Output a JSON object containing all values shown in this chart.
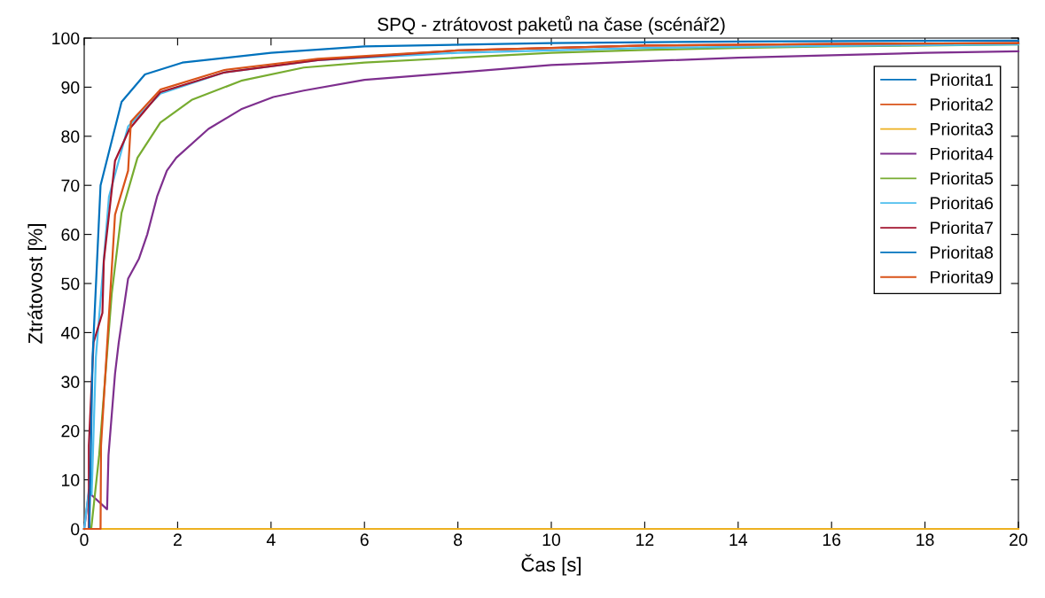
{
  "chart_data": {
    "type": "line",
    "title": "SPQ - ztrátovost paketů na čase (scénář2)",
    "xlabel": "Čas [s]",
    "ylabel": "Ztrátovost [%]",
    "xlim": [
      0,
      20
    ],
    "ylim": [
      0,
      100
    ],
    "xticks": [
      0,
      2,
      4,
      6,
      8,
      10,
      12,
      14,
      16,
      18,
      20
    ],
    "yticks": [
      0,
      10,
      20,
      30,
      40,
      50,
      60,
      70,
      80,
      90,
      100
    ],
    "grid": false,
    "legend": "top right",
    "line_style": "solid",
    "marker": "none",
    "series": [
      {
        "name": "Priorita1",
        "color": "#0072bd"
      },
      {
        "name": "Priorita2",
        "color": "#d95319"
      },
      {
        "name": "Priorita3",
        "color": "#edb120",
        "x": [
          0,
          20
        ],
        "values": [
          0,
          0
        ]
      },
      {
        "name": "Priorita4",
        "color": "#7e2f8e",
        "x": [
          0,
          0.1,
          0.49,
          0.52,
          0.66,
          0.74,
          0.94,
          1.17,
          1.35,
          1.56,
          1.77,
          1.97,
          2.66,
          3.36,
          4.05,
          4.7,
          6,
          8,
          10,
          12,
          14,
          16,
          18,
          20
        ],
        "values": [
          0,
          7.4,
          4,
          15,
          31.6,
          38,
          51,
          55,
          60,
          67.7,
          73,
          75.6,
          81.5,
          85.5,
          88,
          89.3,
          91.5,
          93,
          94.5,
          95.3,
          96,
          96.5,
          97,
          97.3
        ]
      },
      {
        "name": "Priorita5",
        "color": "#77ac30",
        "x": [
          0,
          0.15,
          0.32,
          0.59,
          0.8,
          1.14,
          1.63,
          2.3,
          3.36,
          4.7,
          6,
          8,
          10,
          12,
          14,
          16,
          18,
          20
        ],
        "values": [
          0,
          0,
          15,
          48,
          64.4,
          75.6,
          82.8,
          87.4,
          91.3,
          94,
          95,
          96,
          97,
          97.6,
          98,
          98.3,
          98.5,
          98.7
        ]
      },
      {
        "name": "Priorita6",
        "color": "#4dbeee",
        "x": [
          0,
          0.1,
          0.16,
          0.25,
          0.53,
          0.94,
          1.63,
          3,
          5,
          8,
          12,
          16,
          20
        ],
        "values": [
          0,
          8,
          7,
          35,
          67.7,
          82,
          88.7,
          93,
          95.5,
          97,
          98,
          98.4,
          98.7
        ]
      },
      {
        "name": "Priorita7",
        "color": "#a2142f",
        "x": [
          0,
          0.1,
          0.1,
          0.2,
          0.39,
          0.42,
          0.66,
          0.97,
          1.63,
          3,
          5,
          8,
          12,
          16,
          20
        ],
        "values": [
          0,
          0,
          17,
          38,
          44,
          54.6,
          75,
          81.5,
          89,
          93,
          95.5,
          97.5,
          98.5,
          98.8,
          99
        ]
      },
      {
        "name": "Priorita8",
        "color": "#0072bd",
        "x": [
          0,
          0.11,
          0.18,
          0.35,
          0.8,
          1.3,
          2.1,
          4,
          6,
          10,
          14,
          20
        ],
        "values": [
          0,
          0,
          35,
          70,
          87,
          92.6,
          95,
          97,
          98.3,
          99,
          99.3,
          99.5
        ]
      },
      {
        "name": "Priorita9",
        "color": "#d95319",
        "x": [
          0,
          0.35,
          0.36,
          0.52,
          0.66,
          0.94,
          1.0,
          1.63,
          3,
          5,
          8,
          12,
          16,
          20
        ],
        "values": [
          0,
          0,
          17,
          42,
          64,
          73,
          83,
          89.5,
          93.5,
          95.8,
          97.5,
          98.5,
          98.8,
          99
        ]
      }
    ]
  }
}
